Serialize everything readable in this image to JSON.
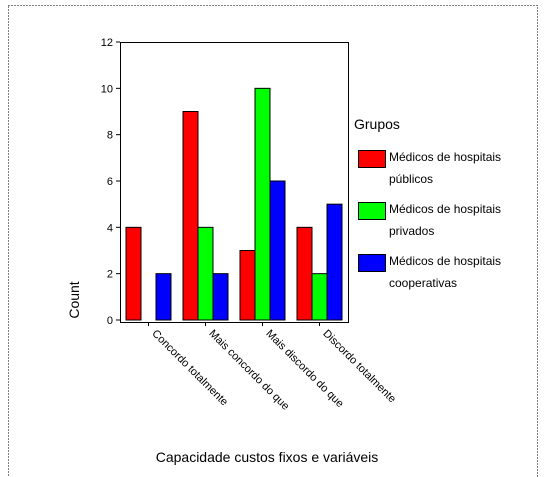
{
  "chart_data": {
    "type": "bar",
    "x_label": "Capacidade custos fixos e variáveis",
    "y_label": "Count",
    "legend_title": "Grupos",
    "categories": [
      "Concordo totalmente",
      "Mais concordo do que",
      "Mais discordo do que",
      "Discordo totalmente"
    ],
    "series": [
      {
        "name": "Médicos de hospitais públicos",
        "color": "#ff0000",
        "values": [
          4,
          9,
          3,
          4
        ]
      },
      {
        "name": "Médicos de hospitais privados",
        "color": "#00ff00",
        "values": [
          0,
          4,
          10,
          2
        ]
      },
      {
        "name": "Médicos de hospitais cooperativas",
        "color": "#0000ff",
        "values": [
          2,
          2,
          6,
          5
        ]
      }
    ],
    "ylim": [
      0,
      12
    ],
    "yticks": [
      0,
      2,
      4,
      6,
      8,
      10,
      12
    ],
    "grid": false,
    "legend": "right"
  }
}
